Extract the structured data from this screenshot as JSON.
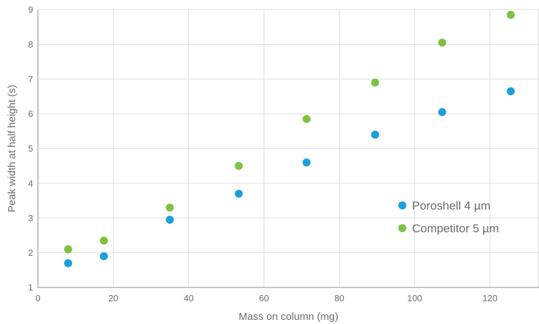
{
  "chart_data": {
    "type": "scatter",
    "title": "",
    "xlabel": "Mass on column (mg)",
    "ylabel": "Peak width at half height (s)",
    "xlim": [
      0,
      133
    ],
    "ylim": [
      1,
      9
    ],
    "x_ticks": [
      0,
      20,
      40,
      60,
      80,
      100,
      120
    ],
    "y_ticks": [
      1,
      2,
      3,
      4,
      5,
      6,
      7,
      8,
      9
    ],
    "grid": true,
    "legend_position": "right",
    "series": [
      {
        "name": "Poroshell 4 µm",
        "color": "#1a9fdb",
        "x": [
          8,
          17.5,
          35,
          53.3,
          71.3,
          89.5,
          107.3,
          125.5
        ],
        "y": [
          1.7,
          1.9,
          2.95,
          3.7,
          4.6,
          5.4,
          6.05,
          6.65
        ]
      },
      {
        "name": "Competitor 5 µm",
        "color": "#7dc242",
        "x": [
          8,
          17.5,
          35,
          53.3,
          71.3,
          89.5,
          107.3,
          125.5
        ],
        "y": [
          2.1,
          2.35,
          3.3,
          4.5,
          5.85,
          6.9,
          8.05,
          8.85
        ]
      }
    ]
  }
}
